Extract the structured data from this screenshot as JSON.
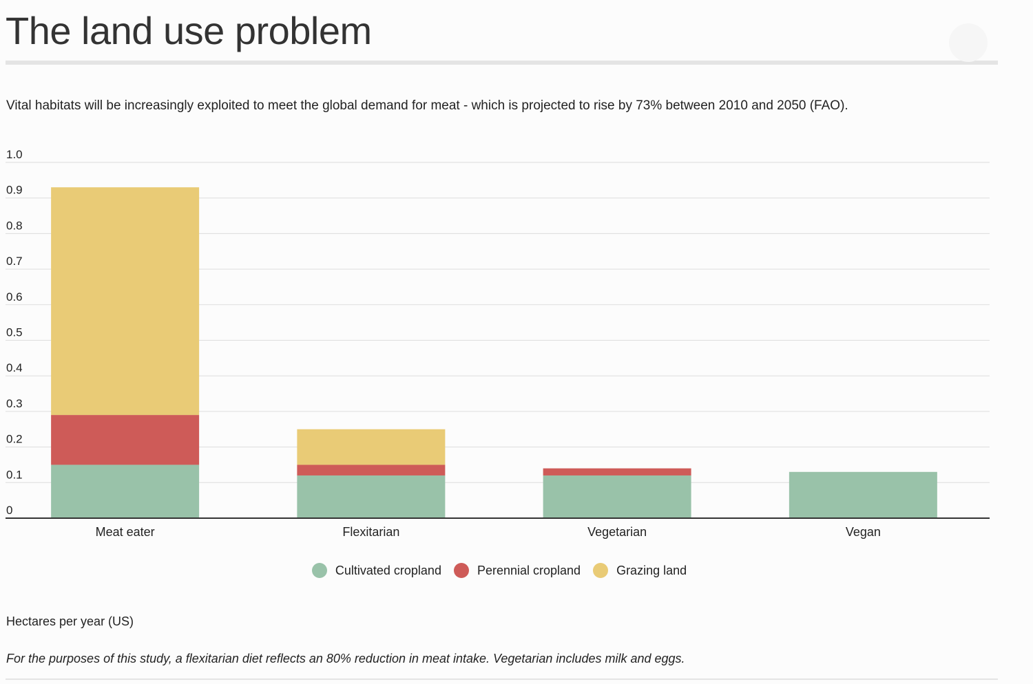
{
  "header": {
    "title": "The land use problem",
    "subtitle": "Vital habitats will be increasingly exploited to meet the global demand for meat - which is projected to rise by 73% between 2010 and 2050 (FAO)."
  },
  "notes": {
    "units": "Hectares per year (US)",
    "footnote": "For the purposes of this study, a flexitarian diet reflects an 80% reduction in meat intake. Vegetarian includes milk and eggs."
  },
  "colors": {
    "cultivated": "#99c2a9",
    "perennial": "#ce5b58",
    "grazing": "#e9cb76",
    "grid": "#dddddd",
    "axis": "#333333"
  },
  "chart_data": {
    "type": "bar",
    "stacked": true,
    "categories": [
      "Meat eater",
      "Flexitarian",
      "Vegetarian",
      "Vegan"
    ],
    "series": [
      {
        "name": "Cultivated cropland",
        "color": "#99c2a9",
        "values": [
          0.15,
          0.12,
          0.12,
          0.13
        ]
      },
      {
        "name": "Perennial cropland",
        "color": "#ce5b58",
        "values": [
          0.14,
          0.03,
          0.02,
          0
        ]
      },
      {
        "name": "Grazing land",
        "color": "#e9cb76",
        "values": [
          0.64,
          0.1,
          0,
          0
        ]
      }
    ],
    "ylim": [
      0,
      1.0
    ],
    "yticks": [
      "0",
      "0.1",
      "0.2",
      "0.3",
      "0.4",
      "0.5",
      "0.6",
      "0.7",
      "0.8",
      "0.9",
      "1.0"
    ],
    "ytick_values": [
      0,
      0.1,
      0.2,
      0.3,
      0.4,
      0.5,
      0.6,
      0.7,
      0.8,
      0.9,
      1.0
    ],
    "grid": true,
    "legend_position": "bottom-center"
  }
}
